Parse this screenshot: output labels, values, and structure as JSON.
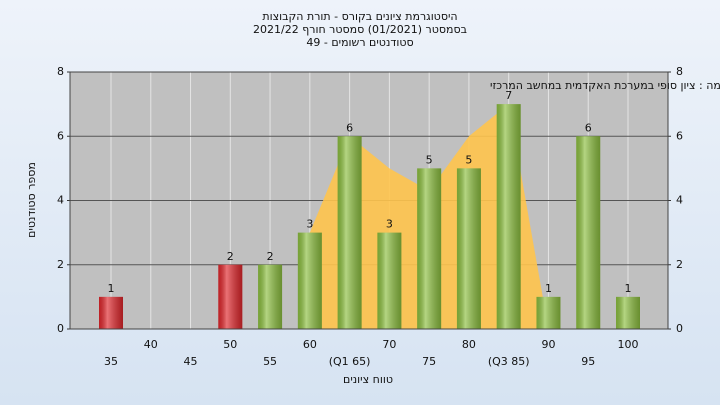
{
  "chart_data": {
    "type": "bar",
    "title": "היסטוגרמת ציונים בקורס - תורת הקבוצות",
    "subtitle": "בסמסטר (01/2021) סמסטר חורף 2021/22",
    "subtitle2": "סטודנטים רשומים - 49",
    "annotation": "במשימה : ציון סופי במערכת האקדמית במחשב המרכזי",
    "x_label": "טווח ציונים",
    "y_label": "מספר סטודנטים",
    "categories": [
      "35",
      "40",
      "45",
      "50",
      "55",
      "60",
      "(Q1 65)",
      "70",
      "75",
      "80",
      "(Q3 85)",
      "90",
      "95",
      "100"
    ],
    "values": [
      1,
      null,
      null,
      2,
      2,
      3,
      6,
      3,
      5,
      5,
      7,
      1,
      6,
      1
    ],
    "colors": [
      "#e0262b",
      null,
      null,
      "#e0262b",
      "#8cbf3f",
      "#8cbf3f",
      "#8cbf3f",
      "#8cbf3f",
      "#8cbf3f",
      "#8cbf3f",
      "#8cbf3f",
      "#8cbf3f",
      "#8cbf3f",
      "#8cbf3f"
    ],
    "area": {
      "color": "#ffc44d",
      "values": [
        null,
        null,
        null,
        null,
        null,
        3,
        6,
        5,
        4.3,
        6,
        7,
        0,
        null,
        null
      ]
    },
    "ylim": [
      0,
      8
    ],
    "yticks": [
      0,
      2,
      4,
      6,
      8
    ],
    "grid": true
  }
}
